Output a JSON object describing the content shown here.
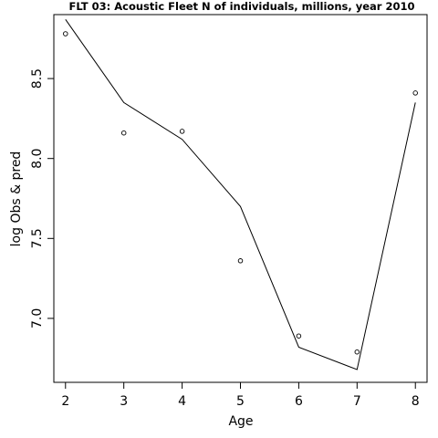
{
  "chart_data": {
    "type": "line",
    "title": "FLT 03: Acoustic Fleet  N of individuals, millions, year 2010",
    "xlabel": "Age",
    "ylabel": "log Obs & pred",
    "xlim": [
      1.8,
      8.2
    ],
    "ylim": [
      6.6,
      8.9
    ],
    "x_ticks": [
      2,
      3,
      4,
      5,
      6,
      7,
      8
    ],
    "y_ticks": [
      7.0,
      7.5,
      8.0,
      8.5
    ],
    "y_tick_labels": [
      "7.0",
      "7.5",
      "8.0",
      "8.5"
    ],
    "grid": false,
    "legend": "none",
    "series": [
      {
        "kind": "points",
        "x": [
          2,
          3,
          4,
          5,
          6,
          7,
          8
        ],
        "values": [
          8.78,
          8.16,
          8.17,
          7.36,
          6.89,
          6.79,
          8.41
        ]
      },
      {
        "kind": "line",
        "x": [
          2,
          3,
          4,
          5,
          6,
          7,
          8
        ],
        "values": [
          8.87,
          8.35,
          8.12,
          7.7,
          6.82,
          6.68,
          8.35
        ]
      }
    ]
  }
}
